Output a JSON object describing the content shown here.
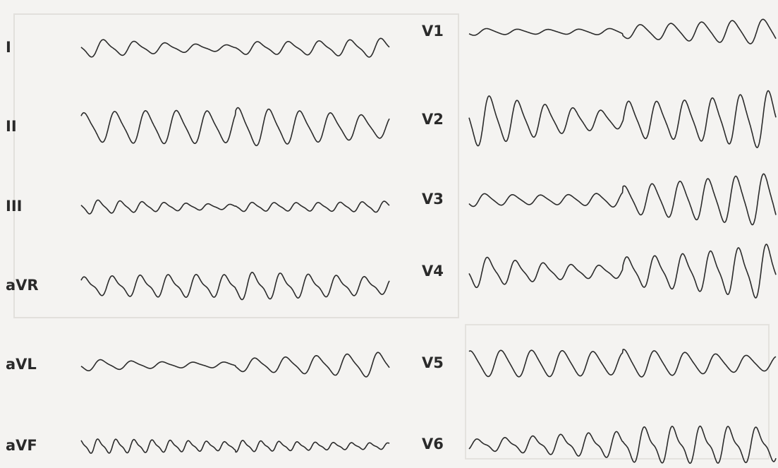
{
  "leads": {
    "left": [
      "I",
      "II",
      "III",
      "aVR",
      "aVL",
      "aVF"
    ],
    "right": [
      "V1",
      "V2",
      "V3",
      "V4",
      "V5",
      "V6"
    ]
  }
}
